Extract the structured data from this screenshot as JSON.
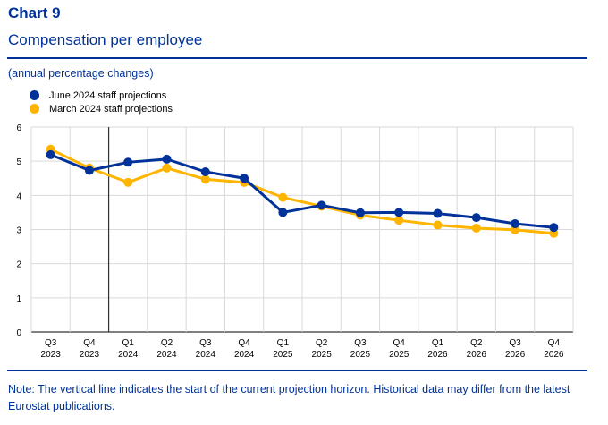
{
  "header": {
    "chart_label": "Chart 9",
    "title": "Compensation per employee",
    "subtitle": "(annual percentage changes)"
  },
  "legend": [
    {
      "label": "June 2024 staff projections",
      "color": "#003299"
    },
    {
      "label": "March 2024 staff projections",
      "color": "#FFB400"
    }
  ],
  "note": "Note: The vertical line indicates the start of the current projection horizon. Historical data may differ from the latest Eurostat publications.",
  "chart_data": {
    "type": "line",
    "title": "Compensation per employee",
    "ylabel": "(annual percentage changes)",
    "xlabel": "",
    "ylim": [
      0,
      6
    ],
    "yticks": [
      0,
      1,
      2,
      3,
      4,
      5,
      6
    ],
    "grid": true,
    "projection_start_after": "Q4 2023",
    "categories": [
      [
        "Q3",
        "2023"
      ],
      [
        "Q4",
        "2023"
      ],
      [
        "Q1",
        "2024"
      ],
      [
        "Q2",
        "2024"
      ],
      [
        "Q3",
        "2024"
      ],
      [
        "Q4",
        "2024"
      ],
      [
        "Q1",
        "2025"
      ],
      [
        "Q2",
        "2025"
      ],
      [
        "Q3",
        "2025"
      ],
      [
        "Q4",
        "2025"
      ],
      [
        "Q1",
        "2026"
      ],
      [
        "Q2",
        "2026"
      ],
      [
        "Q3",
        "2026"
      ],
      [
        "Q4",
        "2026"
      ]
    ],
    "series": [
      {
        "name": "March 2024 staff projections",
        "color": "#FFB400",
        "values": [
          5.35,
          4.8,
          4.38,
          4.8,
          4.47,
          4.38,
          3.94,
          3.68,
          3.42,
          3.27,
          3.13,
          3.04,
          2.99,
          2.89
        ]
      },
      {
        "name": "June 2024 staff projections",
        "color": "#003299",
        "values": [
          5.19,
          4.73,
          4.97,
          5.06,
          4.69,
          4.5,
          3.5,
          3.71,
          3.49,
          3.5,
          3.47,
          3.35,
          3.17,
          3.06
        ]
      }
    ]
  }
}
